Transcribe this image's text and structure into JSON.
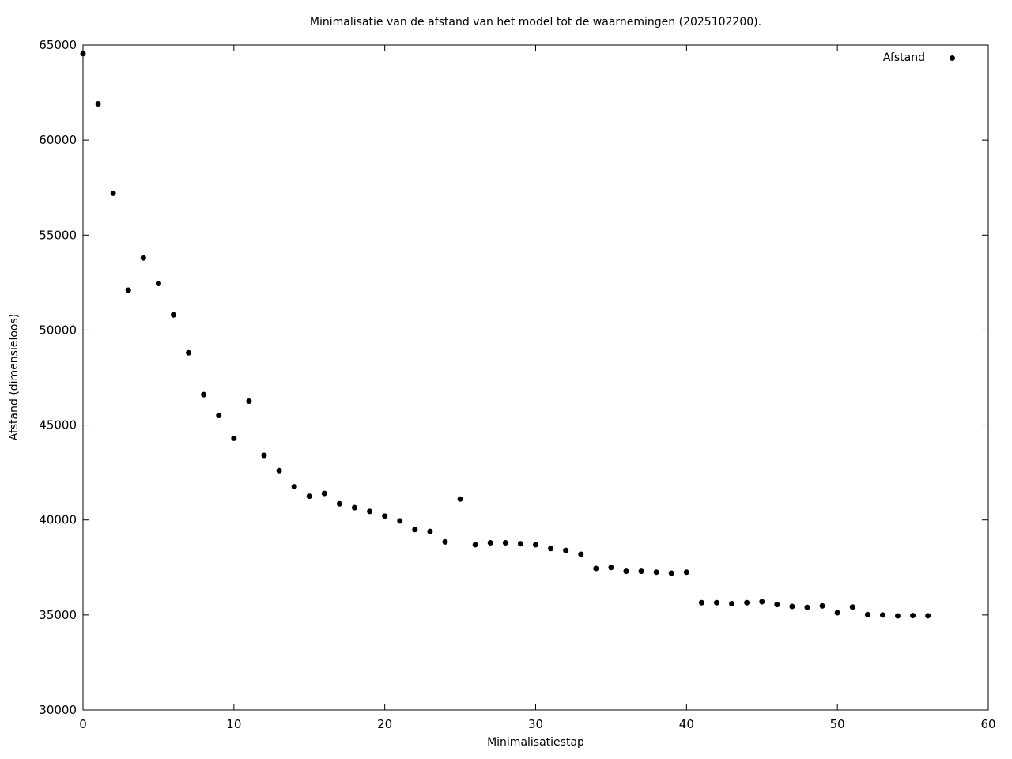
{
  "chart_data": {
    "type": "scatter",
    "title": "Minimalisatie van de afstand van het model tot de waarnemingen (2025102200).",
    "xlabel": "Minimalisatiestap",
    "ylabel": "Afstand (dimensieloos)",
    "xlim": [
      0,
      60
    ],
    "ylim": [
      30000,
      65000
    ],
    "xticks": [
      0,
      10,
      20,
      30,
      40,
      50,
      60
    ],
    "yticks": [
      30000,
      35000,
      40000,
      45000,
      50000,
      55000,
      60000,
      65000
    ],
    "grid": false,
    "legend_position": "top-right-inside",
    "marker": "filled-circle",
    "colors": {
      "background": "#ffffff",
      "foreground": "#000000",
      "series": "#000000"
    },
    "series": [
      {
        "name": "Afstand",
        "x": [
          0,
          1,
          2,
          3,
          4,
          5,
          6,
          7,
          8,
          9,
          10,
          11,
          12,
          13,
          14,
          15,
          16,
          17,
          18,
          19,
          20,
          21,
          22,
          23,
          24,
          25,
          26,
          27,
          28,
          29,
          30,
          31,
          32,
          33,
          34,
          35,
          36,
          37,
          38,
          39,
          40,
          41,
          42,
          43,
          44,
          45,
          46,
          47,
          48,
          49,
          50,
          51,
          52,
          53,
          54,
          55,
          56
        ],
        "y": [
          64550,
          61900,
          57200,
          52100,
          53800,
          52450,
          50800,
          48800,
          46600,
          45500,
          44300,
          46250,
          43400,
          42600,
          41750,
          41250,
          41400,
          40850,
          40650,
          40450,
          40200,
          39950,
          39500,
          39400,
          38850,
          41100,
          38700,
          38800,
          38800,
          38750,
          38700,
          38500,
          38400,
          38200,
          37450,
          37500,
          37300,
          37300,
          37250,
          37200,
          37250,
          35650,
          35650,
          35600,
          35650,
          35700,
          35550,
          35450,
          35400,
          35480,
          35120,
          35420,
          35020,
          35000,
          34950,
          34970,
          34960
        ]
      }
    ]
  }
}
